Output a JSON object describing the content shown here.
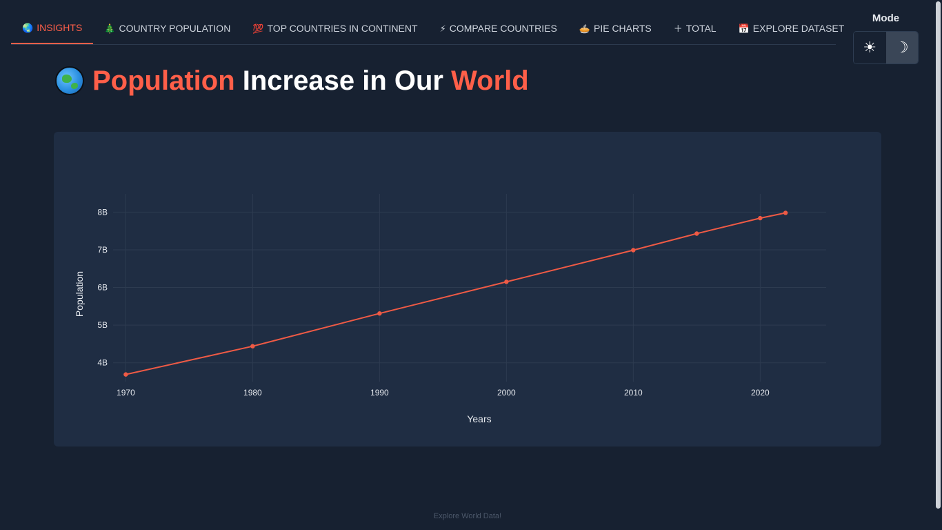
{
  "nav": {
    "tabs": [
      {
        "label": "INSIGHTS",
        "icon": "globe-icon",
        "glyph": "🌏",
        "active": true
      },
      {
        "label": "COUNTRY POPULATION",
        "icon": "tree-icon",
        "glyph": "🎄",
        "active": false
      },
      {
        "label": "TOP COUNTRIES IN CONTINENT",
        "icon": "hundred-icon",
        "glyph": "💯",
        "active": false
      },
      {
        "label": "COMPARE COUNTRIES",
        "icon": "lightning-icon",
        "glyph": "⚡",
        "active": false
      },
      {
        "label": "PIE CHARTS",
        "icon": "pie-icon",
        "glyph": "🥧",
        "active": false
      },
      {
        "label": "TOTAL",
        "icon": "plus-icon",
        "glyph": "＋",
        "active": false
      },
      {
        "label": "EXPLORE DATASET",
        "icon": "calendar-icon",
        "glyph": "📅",
        "active": false
      }
    ]
  },
  "mode": {
    "label": "Mode",
    "light_glyph": "☀",
    "dark_glyph": "☽",
    "selected": "dark"
  },
  "heading": {
    "icon": "globe-icon",
    "word1": "Population",
    "word2": " Increase in Our ",
    "word3": "World"
  },
  "chart_data": {
    "type": "line",
    "title": "",
    "xlabel": "Years",
    "ylabel": "Population",
    "x": [
      1970,
      1980,
      1990,
      2000,
      2010,
      2015,
      2020,
      2022
    ],
    "series": [
      {
        "values": [
          3.69,
          4.44,
          5.31,
          6.15,
          6.99,
          7.43,
          7.84,
          7.98
        ]
      }
    ],
    "x_ticks": [
      1970,
      1980,
      1990,
      2000,
      2010,
      2020
    ],
    "y_ticks": [
      4,
      5,
      6,
      7,
      8
    ],
    "y_tick_labels": [
      "4B",
      "5B",
      "6B",
      "7B",
      "8B"
    ],
    "xlim": [
      1969,
      2025.2
    ],
    "ylim": [
      3.5,
      8.3
    ],
    "line_color": "#ef5a45",
    "grid": true
  },
  "footer": {
    "text": "Explore World Data!"
  }
}
